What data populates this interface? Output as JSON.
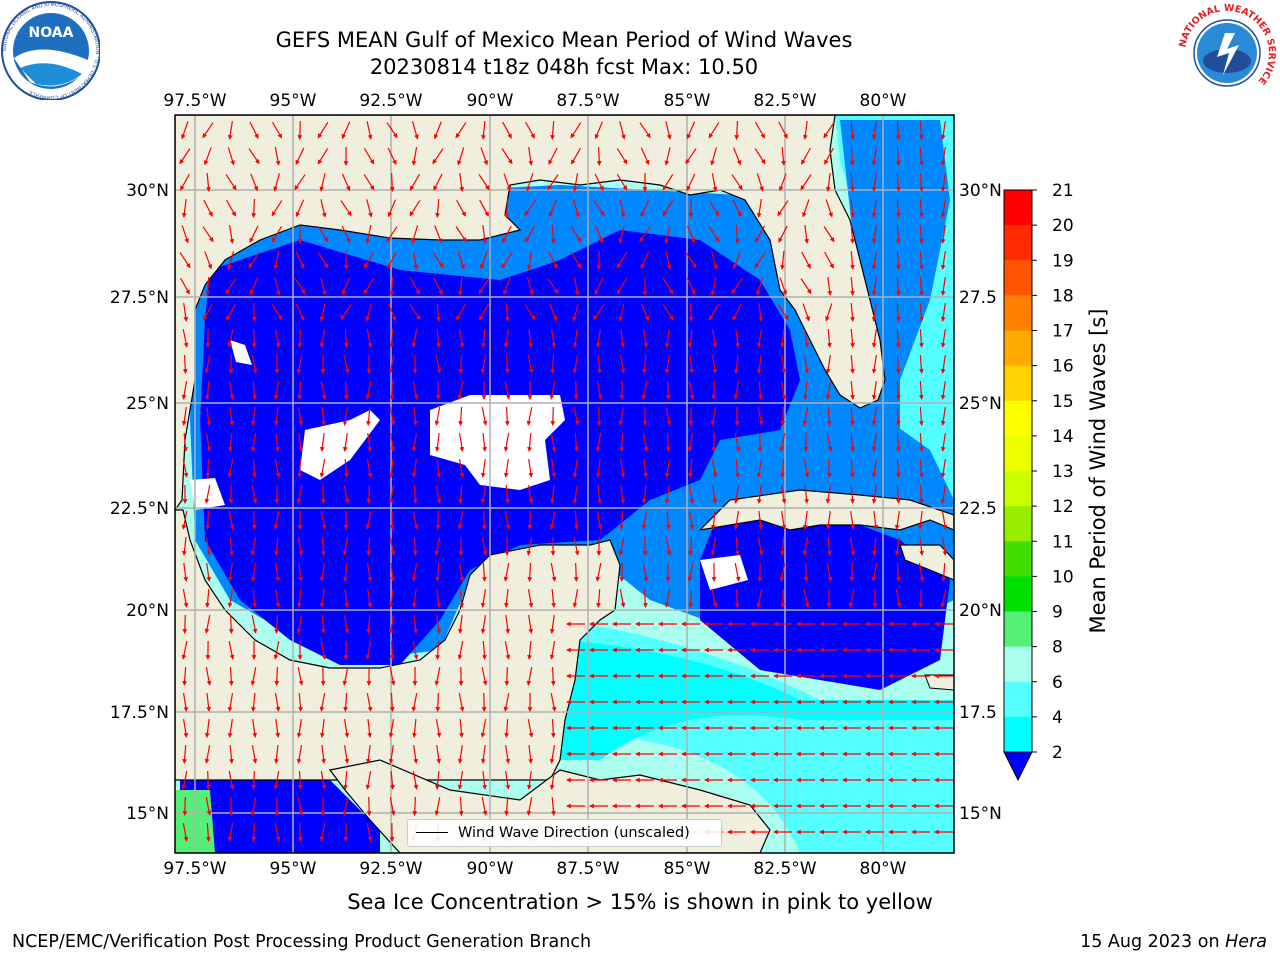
{
  "header": {
    "title_line1": "GEFS MEAN Gulf of Mexico Mean Period of Wind Waves",
    "title_line2": "20230814 t18z 048h fcst   Max: 10.50"
  },
  "logos": {
    "noaa_text": "NOAA",
    "noaa_ring_text": "NATIONAL OCEANIC AND ATMOSPHERIC ADMINISTRATION · U.S. DEPARTMENT OF COMMERCE",
    "nws_ring_text": "NATIONAL WEATHER SERVICE"
  },
  "map": {
    "lon_ticks": [
      "97.5°W",
      "95°W",
      "92.5°W",
      "90°W",
      "87.5°W",
      "85°W",
      "82.5°W",
      "80°W"
    ],
    "lat_ticks_left": [
      "30°N",
      "27.5°N",
      "25°N",
      "22.5°N",
      "20°N",
      "17.5°N",
      "15°N"
    ],
    "lat_ticks_right": [
      "30°N",
      "27.5",
      "25°N",
      "22.5",
      "20°N",
      "17.5",
      "15°N"
    ],
    "legend_label": "Wind Wave Direction (unscaled)",
    "colors": {
      "land": "#f0eedc",
      "arrow": "#ff0000",
      "grid": "#b0b0b0",
      "sea_2_4": "#0000ff"
    }
  },
  "colorbar": {
    "label": "Mean Period of Wind Waves [s]",
    "ticks": [
      "21",
      "20",
      "19",
      "18",
      "17",
      "16",
      "15",
      "14",
      "13",
      "12",
      "11",
      "10",
      "9",
      "8",
      "6",
      "4",
      "2"
    ],
    "colors": [
      "#ff0000",
      "#ff2a00",
      "#ff5500",
      "#ff8000",
      "#ffaa00",
      "#ffd400",
      "#ffff00",
      "#eeff00",
      "#ccff00",
      "#99ee00",
      "#44dd00",
      "#00e000",
      "#55ee77",
      "#aaffee",
      "#55ffff",
      "#00ffff",
      "#0088ff"
    ],
    "extend_color": "#0000ff"
  },
  "footer": {
    "note": "Sea Ice Concentration > 15% is shown in pink to yellow",
    "left": "NCEP/EMC/Verification Post Processing Product Generation Branch",
    "right_date": "15 Aug 2023 on",
    "right_machine": "Hera"
  }
}
